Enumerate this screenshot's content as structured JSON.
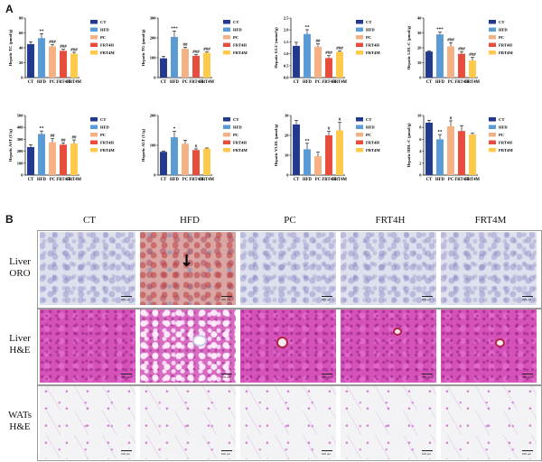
{
  "panel_a_label": "A",
  "panel_b_label": "B",
  "colors": {
    "CT": "#22398e",
    "HFD": "#5b9bd5",
    "PC": "#f4b183",
    "FRT4H": "#e74c3c",
    "FRT4M": "#ffc94a"
  },
  "chart_data": [
    {
      "type": "bar",
      "ylabel": "Hepatic TC (μmol/g)",
      "ylim": [
        0,
        80
      ],
      "yticks": [
        "0",
        "20",
        "40",
        "60",
        "80"
      ],
      "categories": [
        "CT",
        "HFD",
        "PC",
        "FRT4H",
        "FRT4M"
      ],
      "values": [
        45,
        53,
        42,
        36,
        32
      ],
      "errors": [
        3,
        6,
        2,
        2,
        2
      ],
      "significance": [
        "",
        "**",
        "###",
        "###",
        "###"
      ],
      "legend": [
        "CT",
        "HFD",
        "PC",
        "FRT4H",
        "FRT4M"
      ]
    },
    {
      "type": "bar",
      "ylabel": "Hepatic TG (μmol/g)",
      "ylim": [
        0,
        300
      ],
      "yticks": [
        "0",
        "100",
        "200",
        "300"
      ],
      "categories": [
        "CT",
        "HFD",
        "PC",
        "FRT4H",
        "FRT4M"
      ],
      "values": [
        97,
        205,
        145,
        110,
        125
      ],
      "errors": [
        10,
        30,
        8,
        6,
        4
      ],
      "significance": [
        "",
        "***",
        "##",
        "###",
        "###"
      ],
      "legend": [
        "CT",
        "HFD",
        "PC",
        "FRT4H",
        "FRT4M"
      ]
    },
    {
      "type": "bar",
      "ylabel": "Hepatic GLU (mmol/g)",
      "ylim": [
        0,
        2.5
      ],
      "yticks": [
        "0.0",
        "0.5",
        "1.0",
        "1.5",
        "2.0",
        "2.5"
      ],
      "categories": [
        "CT",
        "HFD",
        "PC",
        "FRT4H",
        "FRT4M"
      ],
      "values": [
        1.33,
        1.83,
        1.3,
        0.82,
        1.08
      ],
      "errors": [
        0.15,
        0.18,
        0.12,
        0.1,
        0.04
      ],
      "significance": [
        "",
        "**",
        "##",
        "###",
        "###"
      ],
      "legend": [
        "CT",
        "HFD",
        "PC",
        "FRT4H",
        "FRT4M"
      ]
    },
    {
      "type": "bar",
      "ylabel": "Hepatic LDL-C (μmol/g)",
      "ylim": [
        0,
        40
      ],
      "yticks": [
        "0",
        "10",
        "20",
        "30",
        "40"
      ],
      "categories": [
        "CT",
        "HFD",
        "PC",
        "FRT4H",
        "FRT4M"
      ],
      "values": [
        17.5,
        29,
        21,
        16,
        11.5
      ],
      "errors": [
        0.5,
        1.5,
        2.5,
        1.5,
        2
      ],
      "significance": [
        "",
        "***",
        "###",
        "###",
        "###"
      ],
      "legend": [
        "CT",
        "HFD",
        "PC",
        "FRT4H",
        "FRT4M"
      ]
    },
    {
      "type": "bar",
      "ylabel": "Hepatic AST (U/g)",
      "ylim": [
        0,
        500
      ],
      "yticks": [
        "0",
        "100",
        "200",
        "300",
        "400",
        "500"
      ],
      "categories": [
        "CT",
        "HFD",
        "PC",
        "FRT4H",
        "FRT4M"
      ],
      "values": [
        235,
        345,
        275,
        255,
        265
      ],
      "errors": [
        20,
        25,
        30,
        15,
        30
      ],
      "significance": [
        "",
        "**",
        "##",
        "##",
        "##"
      ],
      "legend": [
        "CT",
        "HFD",
        "PC",
        "FRT4H",
        "FRT4M"
      ]
    },
    {
      "type": "bar",
      "ylabel": "Hepatic ALT (U/g)",
      "ylim": [
        0,
        200
      ],
      "yticks": [
        "0",
        "100",
        "200"
      ],
      "categories": [
        "CT",
        "HFD",
        "PC",
        "FRT4H",
        "FRT4M"
      ],
      "values": [
        78,
        127,
        105,
        84,
        89
      ],
      "errors": [
        3,
        20,
        12,
        4,
        2
      ],
      "significance": [
        "",
        "*",
        "",
        "#",
        ""
      ],
      "legend": [
        "CT",
        "HFD",
        "PC",
        "FRT4H",
        "FRT4M"
      ]
    },
    {
      "type": "bar",
      "ylabel": "Hepatic VLDL (μmol/g)",
      "ylim": [
        0,
        30
      ],
      "yticks": [
        "0",
        "10",
        "20",
        "30"
      ],
      "categories": [
        "CT",
        "HFD",
        "PC",
        "FRT4H",
        "FRT4M"
      ],
      "values": [
        25.5,
        13,
        9.5,
        20,
        22.5
      ],
      "errors": [
        2,
        3,
        2,
        2,
        4
      ],
      "significance": [
        "",
        "**",
        "",
        "#",
        "#"
      ],
      "legend": [
        "CT",
        "HFD",
        "PC",
        "FRT4H",
        "FRT4M"
      ]
    },
    {
      "type": "bar",
      "ylabel": "Hepatic HDL-C (μmol/g)",
      "ylim": [
        0,
        10
      ],
      "yticks": [
        "0",
        "2",
        "4",
        "6",
        "8",
        "10"
      ],
      "categories": [
        "CT",
        "HFD",
        "PC",
        "FRT4H",
        "FRT4M"
      ],
      "values": [
        8.8,
        6,
        8.2,
        7.4,
        6.8
      ],
      "errors": [
        0.4,
        0.8,
        0.9,
        0.9,
        0.2
      ],
      "significance": [
        "",
        "**",
        "#",
        "",
        ""
      ],
      "legend": [
        "CT",
        "HFD",
        "PC",
        "FRT4H",
        "FRT4M"
      ]
    }
  ],
  "histology": {
    "columns": [
      "CT",
      "HFD",
      "PC",
      "FRT4H",
      "FRT4M"
    ],
    "rows": [
      {
        "line1": "Liver",
        "line2": "ORO"
      },
      {
        "line1": "Liver",
        "line2": "H&E"
      },
      {
        "line1": "WATs",
        "line2": "H&E"
      }
    ],
    "scale_oro": "200 μm",
    "scale_he": "100 μm",
    "arrow": "↓"
  }
}
